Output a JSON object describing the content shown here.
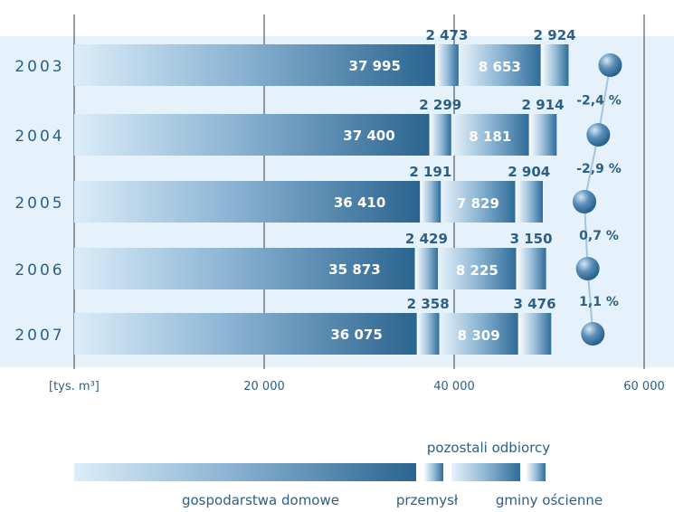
{
  "chart_data": {
    "type": "bar",
    "orientation": "horizontal",
    "stacked": true,
    "categories": [
      "2003",
      "2004",
      "2005",
      "2006",
      "2007"
    ],
    "series": [
      {
        "name": "gospodarstwa domowe",
        "values": [
          37995,
          37400,
          36410,
          35873,
          36075
        ]
      },
      {
        "name": "przemysł",
        "values": [
          2473,
          2299,
          2191,
          2429,
          2358
        ]
      },
      {
        "name": "gminy ościenne",
        "values": [
          8653,
          8181,
          7829,
          8225,
          8309
        ]
      },
      {
        "name": "pozostali odbiorcy",
        "values": [
          2924,
          2914,
          2904,
          3150,
          3476
        ]
      }
    ],
    "value_labels": [
      [
        "37 995",
        "2 473",
        "8 653",
        "2 924"
      ],
      [
        "37 400",
        "2 299",
        "8 181",
        "2 914"
      ],
      [
        "36 410",
        "2 191",
        "7 829",
        "2 904"
      ],
      [
        "35 873",
        "2 429",
        "8 225",
        "3 150"
      ],
      [
        "36 075",
        "2 358",
        "8 309",
        "3 476"
      ]
    ],
    "change_labels": [
      "-2,4 %",
      "-2,9 %",
      "0,7 %",
      "1,1 %"
    ],
    "x_unit_label": "[tys. m³]",
    "x_ticks": [
      {
        "value": 20000,
        "label": "20 000"
      },
      {
        "value": 40000,
        "label": "40 000"
      },
      {
        "value": 60000,
        "label": "60 000"
      }
    ],
    "xlim": [
      0,
      60000
    ],
    "grid": true,
    "legend_position": "bottom",
    "legend": {
      "labels": [
        "gospodarstwa domowe",
        "przemysł",
        "gminy ościenne",
        "pozostali odbiorcy"
      ]
    },
    "colors": {
      "dark": "#2a6490",
      "light": "#dfeef9",
      "label": "#2c5f86",
      "panel_bg": "#e6f2fb",
      "axis": "#333333"
    }
  }
}
